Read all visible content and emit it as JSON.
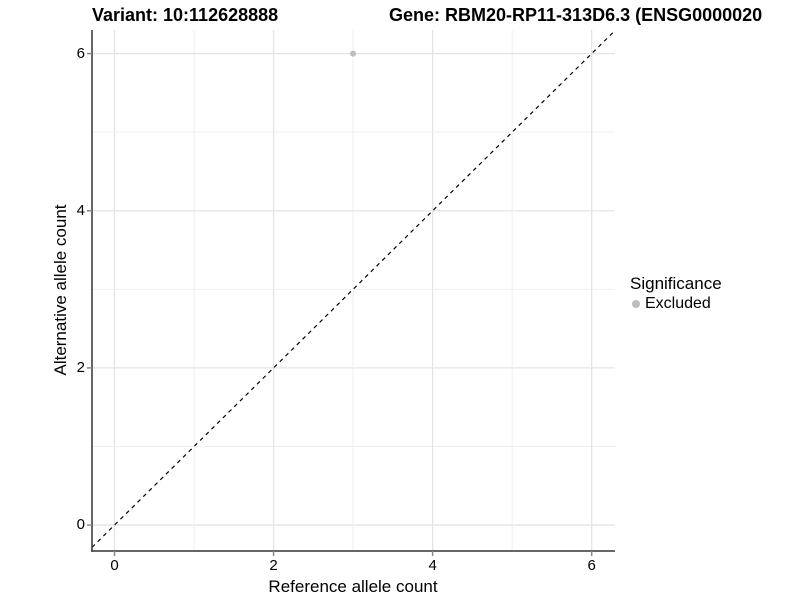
{
  "titles": {
    "variant": "Variant: 10:112628888",
    "gene": "Gene: RBM20-RP11-313D6.3 (ENSG0000020"
  },
  "chart_data": {
    "type": "scatter",
    "xlabel": "Reference allele count",
    "ylabel": "Alternative allele count",
    "xlim": [
      -0.283,
      6.293
    ],
    "ylim": [
      -0.33,
      6.3
    ],
    "x_tick_values": [
      0,
      2,
      4,
      6
    ],
    "x_tick_labels": [
      "0",
      "2",
      "4",
      "6"
    ],
    "y_tick_values": [
      0,
      2,
      4,
      6
    ],
    "y_tick_labels": [
      "0",
      "2",
      "4",
      "6"
    ],
    "grid": "on",
    "grid_interval": 1,
    "identity_line": {
      "style": "dashed",
      "from": -0.283,
      "to": 6.293
    },
    "series": [
      {
        "name": "Excluded",
        "color": "#bdbdbd",
        "points": [
          {
            "x": 3,
            "y": 6
          }
        ]
      }
    ]
  },
  "legend": {
    "title": "Significance",
    "position": "right",
    "items": [
      {
        "label": "Excluded",
        "color": "#bdbdbd",
        "marker": "dot"
      }
    ]
  },
  "colors": {
    "background": "#ffffff",
    "grid_major": "#e4e4e4",
    "grid_minor": "#efefef",
    "axis_line": "#333333",
    "tick_mark": "#888888",
    "dashed_line": "#000000",
    "text": "#000000"
  }
}
